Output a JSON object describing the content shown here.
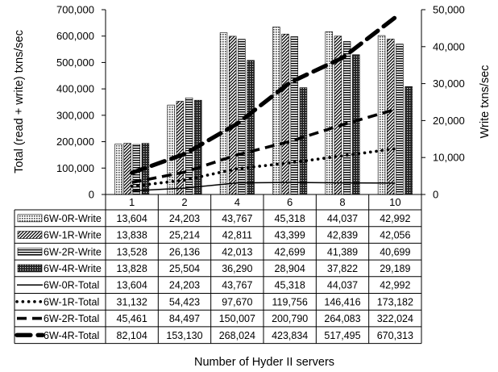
{
  "chart_data": {
    "type": "bar",
    "xlabel": "Number of Hyder II servers",
    "ylabel_left": "Total (read + write) txns/sec",
    "ylabel_right": "Write txns/sec",
    "categories": [
      "1",
      "2",
      "4",
      "6",
      "8",
      "10"
    ],
    "ylim_left": [
      0,
      700000
    ],
    "yticks_left": [
      "0",
      "100,000",
      "200,000",
      "300,000",
      "400,000",
      "500,000",
      "600,000",
      "700,000"
    ],
    "ylim_right": [
      0,
      50000
    ],
    "yticks_right": [
      "0",
      "10,000",
      "20,000",
      "30,000",
      "40,000",
      "50,000"
    ],
    "grid": false,
    "legend_placement": "data table below the plot",
    "bar_series": [
      {
        "name": "6W-0R-Write",
        "axis": "right",
        "pattern": "dots",
        "values": [
          13604,
          24203,
          43767,
          45318,
          44037,
          42992
        ],
        "labels": [
          "13,604",
          "24,203",
          "43,767",
          "45,318",
          "44,037",
          "42,992"
        ]
      },
      {
        "name": "6W-1R-Write",
        "axis": "right",
        "pattern": "diagonal",
        "values": [
          13838,
          25214,
          42811,
          43399,
          42839,
          42056
        ],
        "labels": [
          "13,838",
          "25,214",
          "42,811",
          "43,399",
          "42,839",
          "42,056"
        ]
      },
      {
        "name": "6W-2R-Write",
        "axis": "right",
        "pattern": "horizontal",
        "values": [
          13528,
          26136,
          42013,
          42699,
          41389,
          40699
        ],
        "labels": [
          "13,528",
          "26,136",
          "42,013",
          "42,699",
          "41,389",
          "40,699"
        ]
      },
      {
        "name": "6W-4R-Write",
        "axis": "right",
        "pattern": "crosshatch",
        "values": [
          13828,
          25504,
          36290,
          28904,
          37822,
          29189
        ],
        "labels": [
          "13,828",
          "25,504",
          "36,290",
          "28,904",
          "37,822",
          "29,189"
        ]
      }
    ],
    "line_series": [
      {
        "name": "6W-0R-Total",
        "axis": "left",
        "style": "solid",
        "values": [
          13604,
          24203,
          43767,
          45318,
          44037,
          42992
        ],
        "labels": [
          "13,604",
          "24,203",
          "43,767",
          "45,318",
          "44,037",
          "42,992"
        ]
      },
      {
        "name": "6W-1R-Total",
        "axis": "left",
        "style": "dotted",
        "values": [
          31132,
          54423,
          97670,
          119756,
          146416,
          173182
        ],
        "labels": [
          "31,132",
          "54,423",
          "97,670",
          "119,756",
          "146,416",
          "173,182"
        ]
      },
      {
        "name": "6W-2R-Total",
        "axis": "left",
        "style": "dashed",
        "values": [
          45461,
          84497,
          150007,
          200790,
          264083,
          322024
        ],
        "labels": [
          "45,461",
          "84,497",
          "150,007",
          "200,790",
          "264,083",
          "322,024"
        ]
      },
      {
        "name": "6W-4R-Total",
        "axis": "left",
        "style": "long-dash-thick",
        "values": [
          82104,
          153130,
          268024,
          423834,
          517495,
          670313
        ],
        "labels": [
          "82,104",
          "153,130",
          "268,024",
          "423,834",
          "517,495",
          "670,313"
        ]
      }
    ]
  }
}
